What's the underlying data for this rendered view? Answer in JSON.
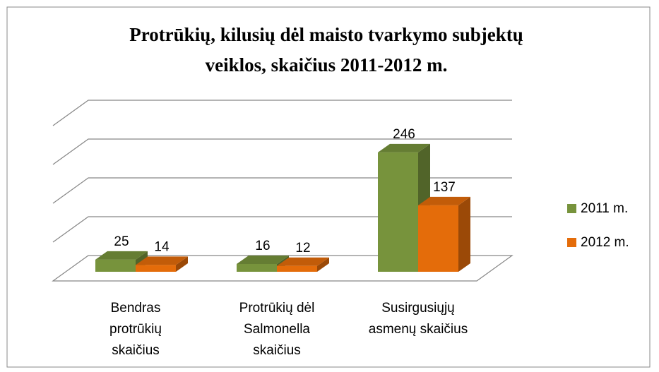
{
  "chart_data": {
    "type": "bar3d",
    "title": [
      "Protrūkių, kilusių dėl maisto tvarkymo subjektų",
      "veiklos, skaičius 2011-2012 m."
    ],
    "categories": [
      [
        "Bendras",
        "protrūkių",
        "skaičius"
      ],
      [
        "Protrūkių dėl",
        "Salmonella",
        "skaičius"
      ],
      [
        "Susirgusiųjų",
        "asmenų skaičius"
      ]
    ],
    "series": [
      {
        "name": "2011 m.",
        "color": "#77933c",
        "values": [
          25,
          16,
          246
        ]
      },
      {
        "name": "2012 m.",
        "color": "#e46c0a",
        "values": [
          14,
          12,
          137
        ]
      }
    ],
    "ylim": [
      0,
      320
    ],
    "yticks": [
      0,
      80,
      160,
      240,
      320
    ],
    "grid": true,
    "legend": "right"
  }
}
